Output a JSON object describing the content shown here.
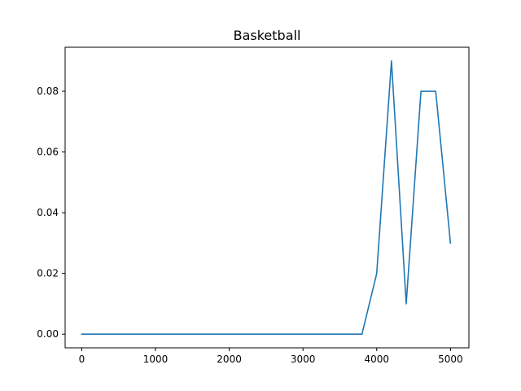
{
  "chart_data": {
    "type": "line",
    "title": "Basketball",
    "xlabel": "",
    "ylabel": "",
    "xlim": [
      -225,
      5250
    ],
    "ylim": [
      -0.0045,
      0.0945
    ],
    "xticks": [
      0,
      1000,
      2000,
      3000,
      4000,
      5000
    ],
    "xtick_labels": [
      "0",
      "1000",
      "2000",
      "3000",
      "4000",
      "5000"
    ],
    "yticks": [
      0.0,
      0.02,
      0.04,
      0.06,
      0.08
    ],
    "ytick_labels": [
      "0.00",
      "0.02",
      "0.04",
      "0.06",
      "0.08"
    ],
    "grid": false,
    "legend": "none",
    "series": [
      {
        "color": "#1f77b4",
        "x": [
          0,
          200,
          400,
          600,
          800,
          1000,
          1200,
          1400,
          1600,
          1800,
          2000,
          2200,
          2400,
          2600,
          2800,
          3000,
          3200,
          3400,
          3600,
          3800,
          4000,
          4200,
          4400,
          4600,
          4800,
          5000
        ],
        "values": [
          0,
          0,
          0,
          0,
          0,
          0,
          0,
          0,
          0,
          0,
          0,
          0,
          0,
          0,
          0,
          0,
          0,
          0,
          0,
          0,
          0.02,
          0.09,
          0.01,
          0.08,
          0.08,
          0.03
        ]
      }
    ]
  }
}
